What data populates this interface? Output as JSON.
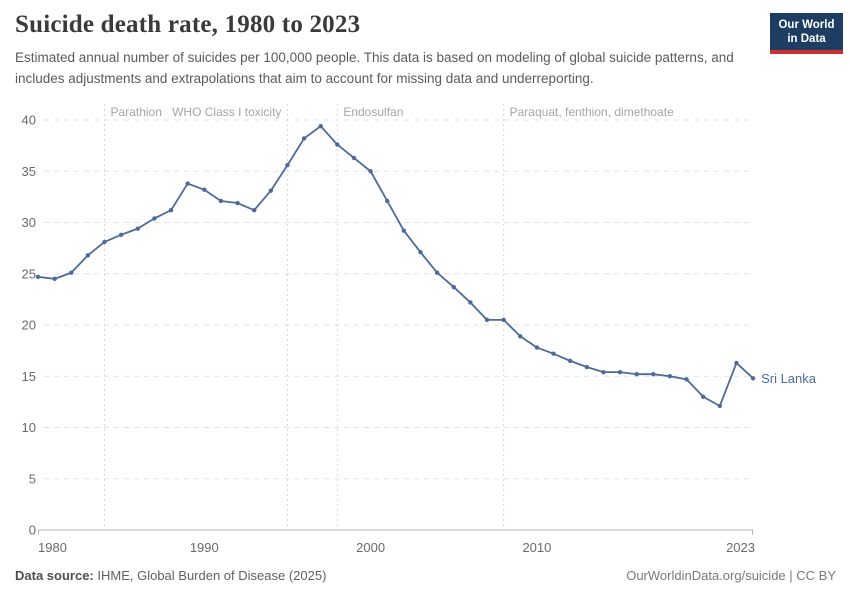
{
  "header": {
    "title": "Suicide death rate, 1980 to 2023",
    "subtitle": "Estimated annual number of suicides per 100,000 people. This data is based on modeling of global suicide patterns, and includes adjustments and extrapolations that aim to account for missing data and underreporting.",
    "logo": {
      "line1": "Our World",
      "line2": "in Data",
      "bg_color": "#1d3d63",
      "stripe_color": "#c83230"
    }
  },
  "footer": {
    "source_label": "Data source:",
    "source_text": " IHME, Global Burden of Disease (2025)",
    "rights": "OurWorldinData.org/suicide | CC BY"
  },
  "chart_data": {
    "type": "line",
    "title": "Suicide death rate, 1980 to 2023",
    "xlabel": "",
    "ylabel": "",
    "xlim": [
      1980,
      2023
    ],
    "ylim": [
      0,
      40
    ],
    "grid": "horizontal-dashed",
    "legend_position": "end-of-line-label",
    "x_ticks": [
      1980,
      1990,
      2000,
      2010,
      2023
    ],
    "y_ticks": [
      0,
      5,
      10,
      15,
      20,
      25,
      30,
      35,
      40
    ],
    "end_label": "Sri Lanka",
    "series": [
      {
        "name": "Sri Lanka",
        "color": "#4C6A9C",
        "x": [
          1980,
          1981,
          1982,
          1983,
          1984,
          1985,
          1986,
          1987,
          1988,
          1989,
          1990,
          1991,
          1992,
          1993,
          1994,
          1995,
          1996,
          1997,
          1998,
          1999,
          2000,
          2001,
          2002,
          2003,
          2004,
          2005,
          2006,
          2007,
          2008,
          2009,
          2010,
          2011,
          2012,
          2013,
          2014,
          2015,
          2016,
          2017,
          2018,
          2019,
          2020,
          2021,
          2022,
          2023
        ],
        "values": [
          24.7,
          24.5,
          25.1,
          26.8,
          28.1,
          28.8,
          29.4,
          30.4,
          31.2,
          33.8,
          33.2,
          32.1,
          31.9,
          31.2,
          33.1,
          35.6,
          38.2,
          39.4,
          37.6,
          36.3,
          35.0,
          32.1,
          29.2,
          27.1,
          25.1,
          23.7,
          22.2,
          20.5,
          20.5,
          18.9,
          17.8,
          17.2,
          16.5,
          15.9,
          15.4,
          15.4,
          15.2,
          15.2,
          15.0,
          14.7,
          13.0,
          12.1,
          16.3,
          14.8
        ]
      }
    ],
    "annotations": [
      {
        "year": 1984,
        "label": "Parathion",
        "align": "left"
      },
      {
        "year": 1995,
        "label": "WHO Class I toxicity",
        "align": "right"
      },
      {
        "year": 1998,
        "label": "Endosulfan",
        "align": "left"
      },
      {
        "year": 2008,
        "label": "Paraquat, fenthion, dimethoate",
        "align": "left"
      }
    ],
    "colors": {
      "gridline": "#e3e3e3",
      "axis_line": "#b5b5b5",
      "tick_label": "#6a6a6a",
      "annotation_line": "#d8d8d8",
      "annotation_label": "#a5a5a5"
    }
  }
}
